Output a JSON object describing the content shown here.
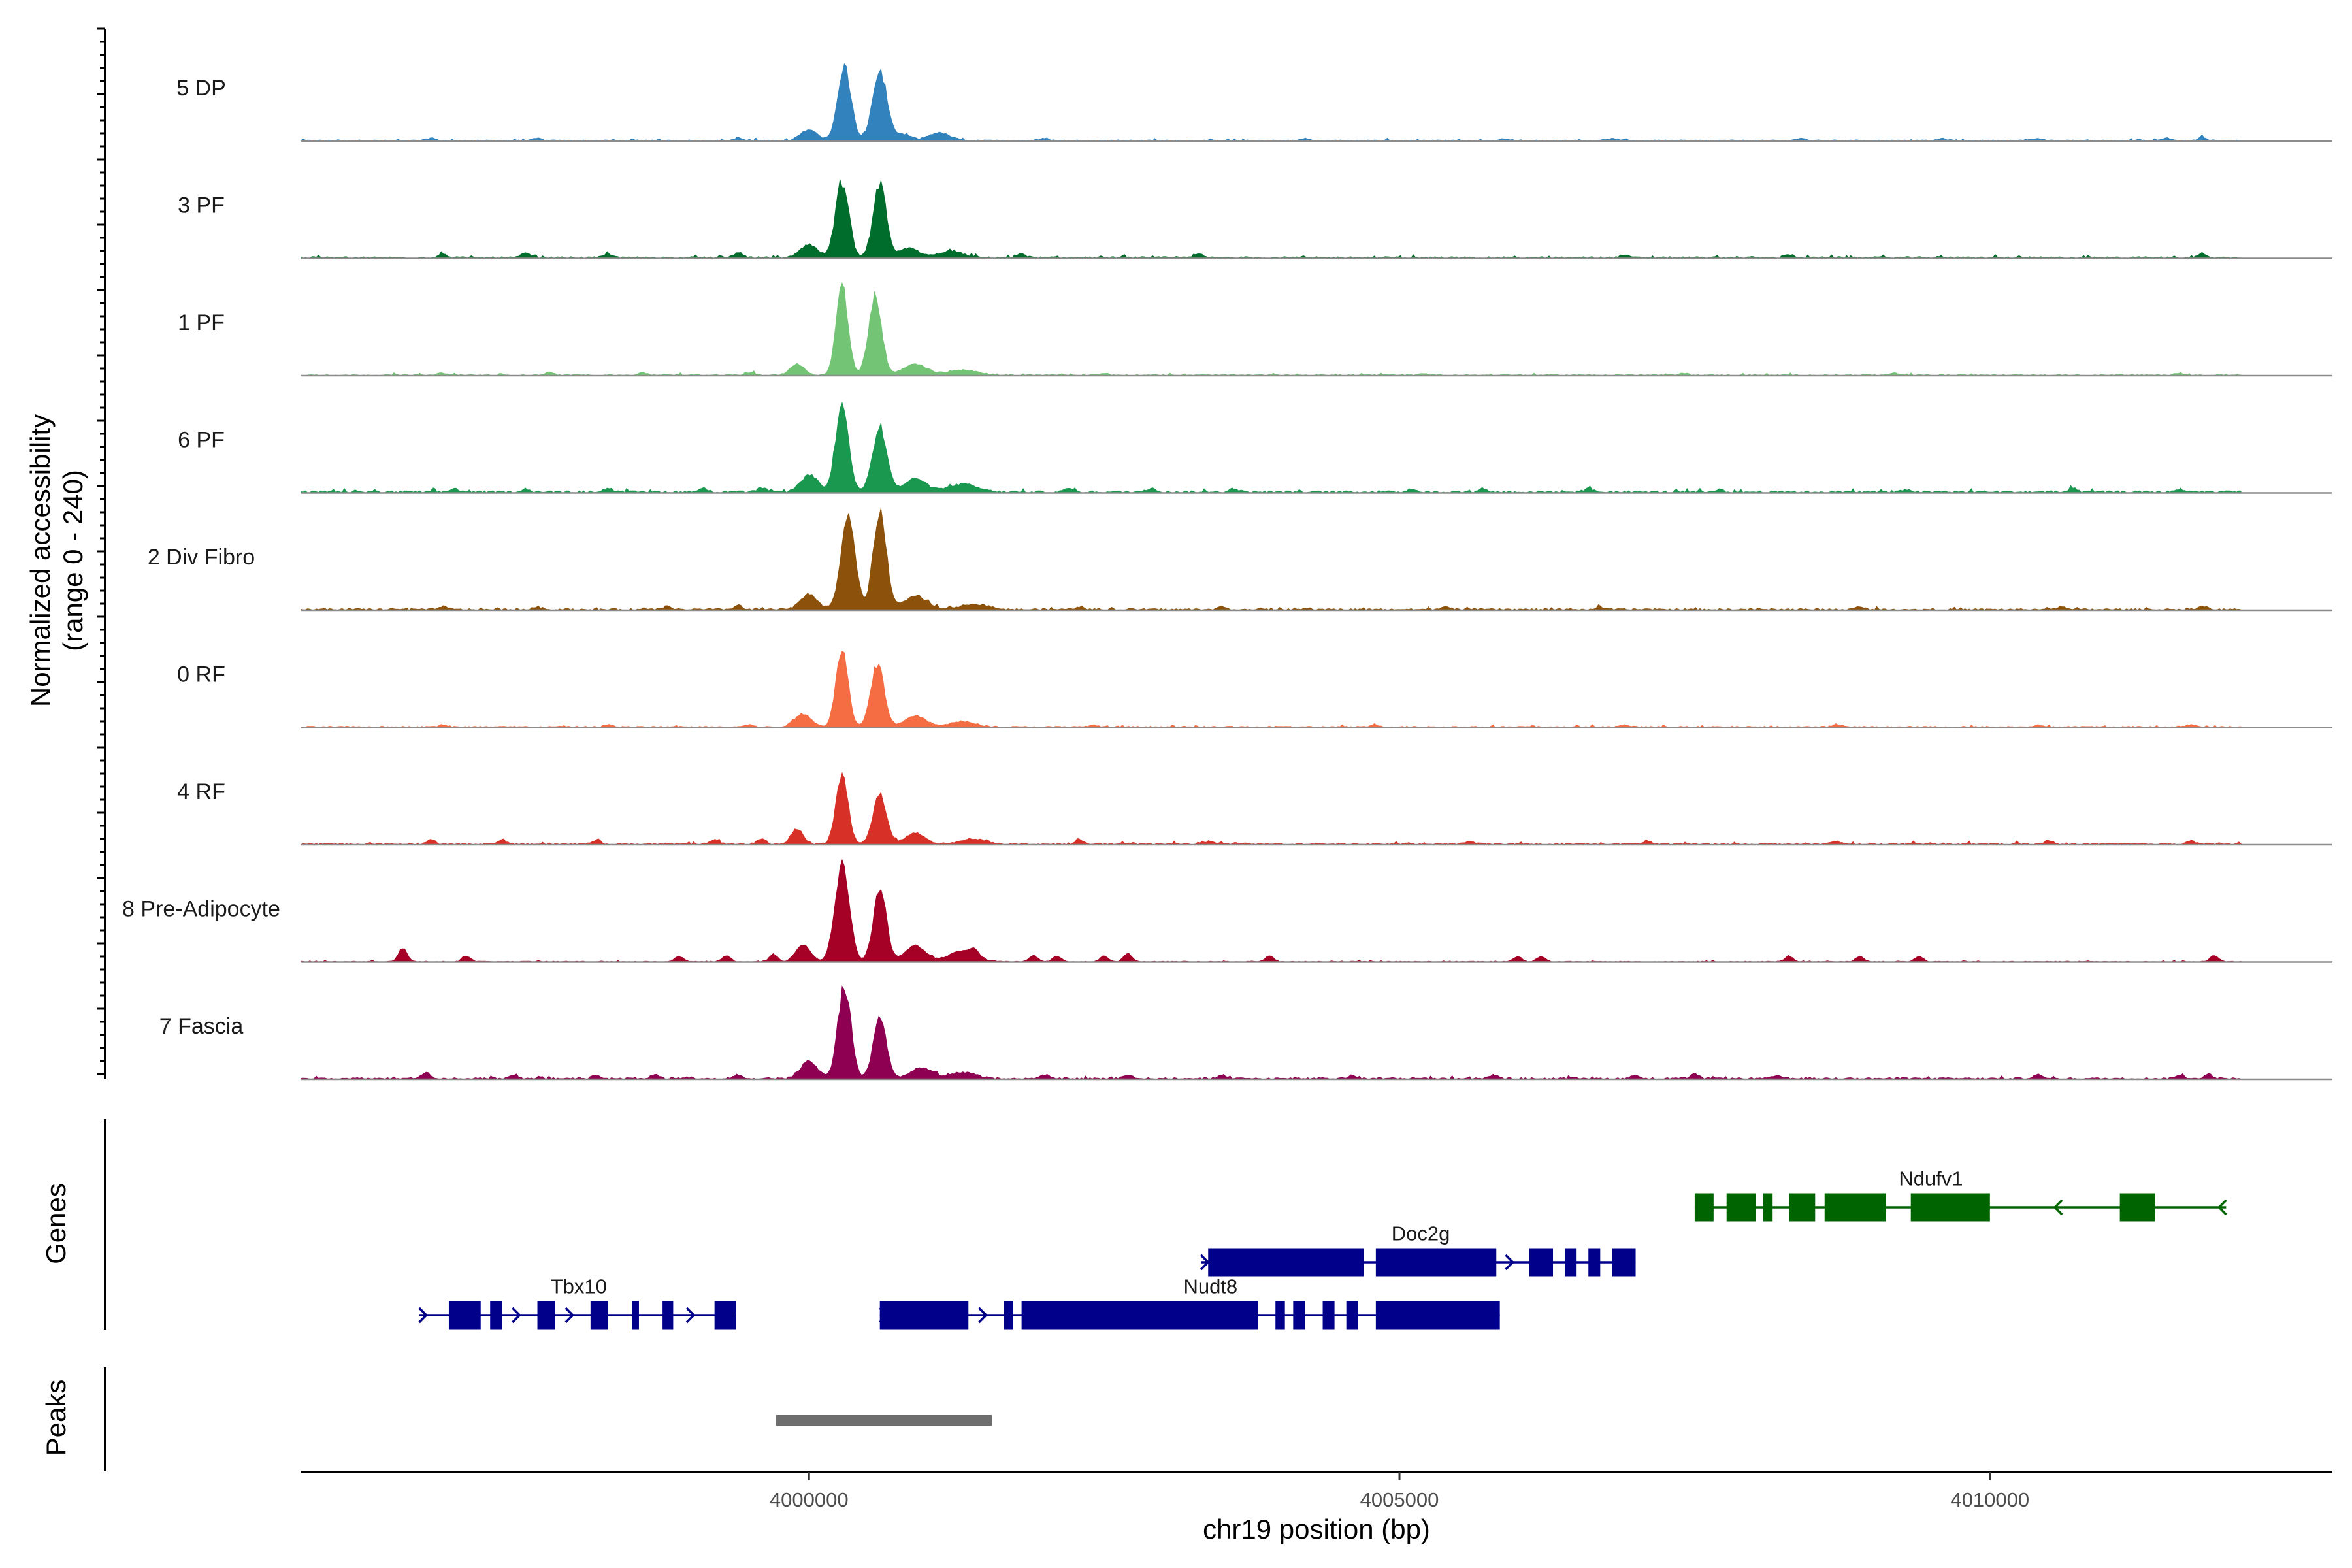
{
  "chart_data": {
    "type": "area",
    "xlabel": "chr19 position (bp)",
    "ylabel_line1": "Normalized accessibility",
    "ylabel_line2": "(range 0 - 240)",
    "ylim": [
      0,
      240
    ],
    "xlim": [
      3995700,
      4012900
    ],
    "x_ticks": [
      4000000,
      4005000,
      4010000
    ],
    "x_tick_labels": [
      "4000000",
      "4005000",
      "4010000"
    ],
    "gene_track_label": "Genes",
    "peak_track_label": "Peaks",
    "tracks": [
      {
        "name": "5 DP",
        "color": "#3182bd",
        "peaks": [
          [
            4000300,
            170,
            55
          ],
          [
            4000600,
            160,
            60
          ],
          [
            4000000,
            25,
            70
          ],
          [
            4001100,
            18,
            90
          ],
          [
            4000800,
            14,
            60
          ]
        ],
        "spikes": [
          [
            3996800,
            6
          ],
          [
            3997700,
            5
          ],
          [
            3999400,
            6
          ],
          [
            4002000,
            5
          ],
          [
            4004200,
            4
          ],
          [
            4005900,
            5
          ],
          [
            4006800,
            4
          ],
          [
            4008400,
            6
          ],
          [
            4009600,
            5
          ],
          [
            4010400,
            5
          ],
          [
            4011500,
            6
          ],
          [
            4011800,
            8
          ]
        ],
        "noise": 3
      },
      {
        "name": "3 PF",
        "color": "#006d2c",
        "peaks": [
          [
            4000280,
            175,
            55
          ],
          [
            4000600,
            168,
            55
          ],
          [
            4000000,
            30,
            70
          ],
          [
            4000850,
            22,
            80
          ],
          [
            4001200,
            15,
            100
          ]
        ],
        "spikes": [
          [
            3996900,
            8
          ],
          [
            3997600,
            10
          ],
          [
            3998300,
            8
          ],
          [
            3999400,
            12
          ],
          [
            4001800,
            10
          ],
          [
            4003300,
            8
          ],
          [
            4006900,
            6
          ],
          [
            4008300,
            7
          ],
          [
            4011800,
            10
          ]
        ],
        "noise": 4
      },
      {
        "name": "1 PF",
        "color": "#74c476",
        "peaks": [
          [
            4000280,
            205,
            50
          ],
          [
            4000560,
            180,
            55
          ],
          [
            3999900,
            25,
            60
          ],
          [
            4000900,
            25,
            100
          ],
          [
            4001300,
            12,
            120
          ]
        ],
        "spikes": [
          [
            3996900,
            5
          ],
          [
            3997800,
            6
          ],
          [
            3998600,
            5
          ],
          [
            3999500,
            6
          ],
          [
            4002500,
            4
          ],
          [
            4005200,
            4
          ],
          [
            4007400,
            5
          ],
          [
            4009200,
            4
          ],
          [
            4011600,
            5
          ]
        ],
        "noise": 3
      },
      {
        "name": "6 PF",
        "color": "#1a9850",
        "peaks": [
          [
            4000280,
            195,
            55
          ],
          [
            4000600,
            150,
            60
          ],
          [
            4000000,
            40,
            70
          ],
          [
            4000900,
            30,
            90
          ],
          [
            4001300,
            18,
            120
          ]
        ],
        "spikes": [
          [
            3997000,
            8
          ],
          [
            3997600,
            7
          ],
          [
            3998300,
            9
          ],
          [
            3999100,
            10
          ],
          [
            3999600,
            10
          ],
          [
            4002200,
            8
          ],
          [
            4002900,
            10
          ],
          [
            4003600,
            8
          ],
          [
            4005100,
            7
          ],
          [
            4005700,
            8
          ],
          [
            4006600,
            8
          ],
          [
            4007700,
            6
          ],
          [
            4009300,
            6
          ],
          [
            4010700,
            6
          ],
          [
            4011600,
            7
          ]
        ],
        "noise": 5
      },
      {
        "name": "2 Div Fibro",
        "color": "#8c510a",
        "peaks": [
          [
            4000330,
            210,
            60
          ],
          [
            4000600,
            225,
            55
          ],
          [
            4000000,
            35,
            70
          ],
          [
            4000900,
            30,
            100
          ],
          [
            4001400,
            12,
            120
          ]
        ],
        "spikes": [
          [
            3996900,
            7
          ],
          [
            3997700,
            6
          ],
          [
            3998800,
            7
          ],
          [
            3999400,
            9
          ],
          [
            4002300,
            6
          ],
          [
            4003500,
            6
          ],
          [
            4005400,
            6
          ],
          [
            4006700,
            5
          ],
          [
            4008900,
            6
          ],
          [
            4010600,
            6
          ],
          [
            4011800,
            8
          ]
        ],
        "noise": 4
      },
      {
        "name": "0 RF",
        "color": "#f46d43",
        "peaks": [
          [
            4000280,
            185,
            50
          ],
          [
            4000580,
            145,
            55
          ],
          [
            3999950,
            30,
            70
          ],
          [
            4000900,
            25,
            90
          ],
          [
            4001300,
            12,
            110
          ]
        ],
        "spikes": [
          [
            3996900,
            5
          ],
          [
            3998300,
            5
          ],
          [
            3999500,
            5
          ],
          [
            4002400,
            4
          ],
          [
            4004800,
            4
          ],
          [
            4006900,
            4
          ],
          [
            4008700,
            5
          ],
          [
            4010400,
            4
          ],
          [
            4011700,
            6
          ]
        ],
        "noise": 3
      },
      {
        "name": "4 RF",
        "color": "#d73027",
        "peaks": [
          [
            4000280,
            160,
            50
          ],
          [
            4000600,
            115,
            55
          ],
          [
            3999900,
            35,
            50
          ],
          [
            4000900,
            25,
            80
          ],
          [
            4001400,
            12,
            100
          ]
        ],
        "spikes": [
          [
            3996800,
            10
          ],
          [
            3997400,
            8
          ],
          [
            3998200,
            9
          ],
          [
            3999200,
            10
          ],
          [
            3999600,
            12
          ],
          [
            4002300,
            8
          ],
          [
            4003400,
            7
          ],
          [
            4005600,
            6
          ],
          [
            4007100,
            6
          ],
          [
            4008700,
            6
          ],
          [
            4010500,
            7
          ],
          [
            4011700,
            8
          ]
        ],
        "noise": 4
      },
      {
        "name": "8 Pre-Adipocyte",
        "color": "#a50026",
        "peaks": [
          [
            4000280,
            225,
            60
          ],
          [
            4000600,
            165,
            55
          ],
          [
            3999950,
            40,
            60
          ],
          [
            4000900,
            35,
            90
          ],
          [
            4001300,
            25,
            110
          ],
          [
            3996560,
            32,
            35
          ]
        ],
        "spikes": [
          [
            3997100,
            12
          ],
          [
            3998900,
            12
          ],
          [
            3999300,
            14
          ],
          [
            3999700,
            16
          ],
          [
            4001400,
            15
          ],
          [
            4001900,
            14
          ],
          [
            4002100,
            13
          ],
          [
            4002500,
            13
          ],
          [
            4002700,
            18
          ],
          [
            4003900,
            14
          ],
          [
            4006000,
            12
          ],
          [
            4006200,
            12
          ],
          [
            4008300,
            12
          ],
          [
            4008900,
            12
          ],
          [
            4009400,
            12
          ],
          [
            4011900,
            14
          ]
        ],
        "noise": 2
      },
      {
        "name": "7 Fascia",
        "color": "#8e0152",
        "peaks": [
          [
            4000300,
            210,
            55
          ],
          [
            4000600,
            140,
            55
          ],
          [
            4000000,
            40,
            70
          ],
          [
            4000950,
            25,
            90
          ],
          [
            4001300,
            14,
            110
          ],
          [
            3996750,
            12,
            40
          ]
        ],
        "spikes": [
          [
            3997500,
            7
          ],
          [
            3998200,
            8
          ],
          [
            3998700,
            8
          ],
          [
            3999400,
            9
          ],
          [
            4002000,
            8
          ],
          [
            4002700,
            9
          ],
          [
            4003500,
            8
          ],
          [
            4004600,
            7
          ],
          [
            4005800,
            8
          ],
          [
            4007000,
            8
          ],
          [
            4007500,
            10
          ],
          [
            4008200,
            7
          ],
          [
            4010400,
            9
          ],
          [
            4011600,
            8
          ],
          [
            4011850,
            10
          ]
        ],
        "noise": 4
      }
    ],
    "genes": [
      {
        "name": "Tbx10",
        "strand": "+",
        "row": 3,
        "color": "#00008b",
        "start": 3996700,
        "end": 3999380,
        "exons": [
          [
            3996950,
            3997220
          ],
          [
            3997300,
            3997400
          ],
          [
            3997700,
            3997850
          ],
          [
            3998150,
            3998300
          ],
          [
            3998500,
            3998560
          ],
          [
            3998760,
            3998850
          ],
          [
            3999200,
            3999380
          ]
        ]
      },
      {
        "name": "Nudt8",
        "strand": "+",
        "row": 3,
        "color": "#00008b",
        "start": 4000600,
        "end": 4005850,
        "exons": [
          [
            4000600,
            4001350
          ],
          [
            4001650,
            4001730
          ],
          [
            4001800,
            4003800
          ],
          [
            4003950,
            4004030
          ],
          [
            4004100,
            4004200
          ],
          [
            4004350,
            4004450
          ],
          [
            4004550,
            4004650
          ],
          [
            4004800,
            4005850
          ]
        ]
      },
      {
        "name": "Doc2g",
        "strand": "+",
        "row": 2,
        "color": "#00008b",
        "start": 4003320,
        "end": 4007000,
        "exons": [
          [
            4003380,
            4004700
          ],
          [
            4004800,
            4005820
          ],
          [
            4006100,
            4006300
          ],
          [
            4006400,
            4006500
          ],
          [
            4006600,
            4006700
          ],
          [
            4006800,
            4007000
          ]
        ]
      },
      {
        "name": "Ndufv1",
        "strand": "-",
        "row": 1,
        "color": "#006400",
        "start": 4007500,
        "end": 4012000,
        "exons": [
          [
            4007500,
            4007660
          ],
          [
            4007770,
            4008020
          ],
          [
            4008080,
            4008160
          ],
          [
            4008300,
            4008520
          ],
          [
            4008600,
            4009120
          ],
          [
            4009330,
            4010000
          ],
          [
            4011100,
            4011400
          ]
        ]
      }
    ],
    "peaks_region": [
      [
        3999720,
        4001550
      ]
    ]
  }
}
